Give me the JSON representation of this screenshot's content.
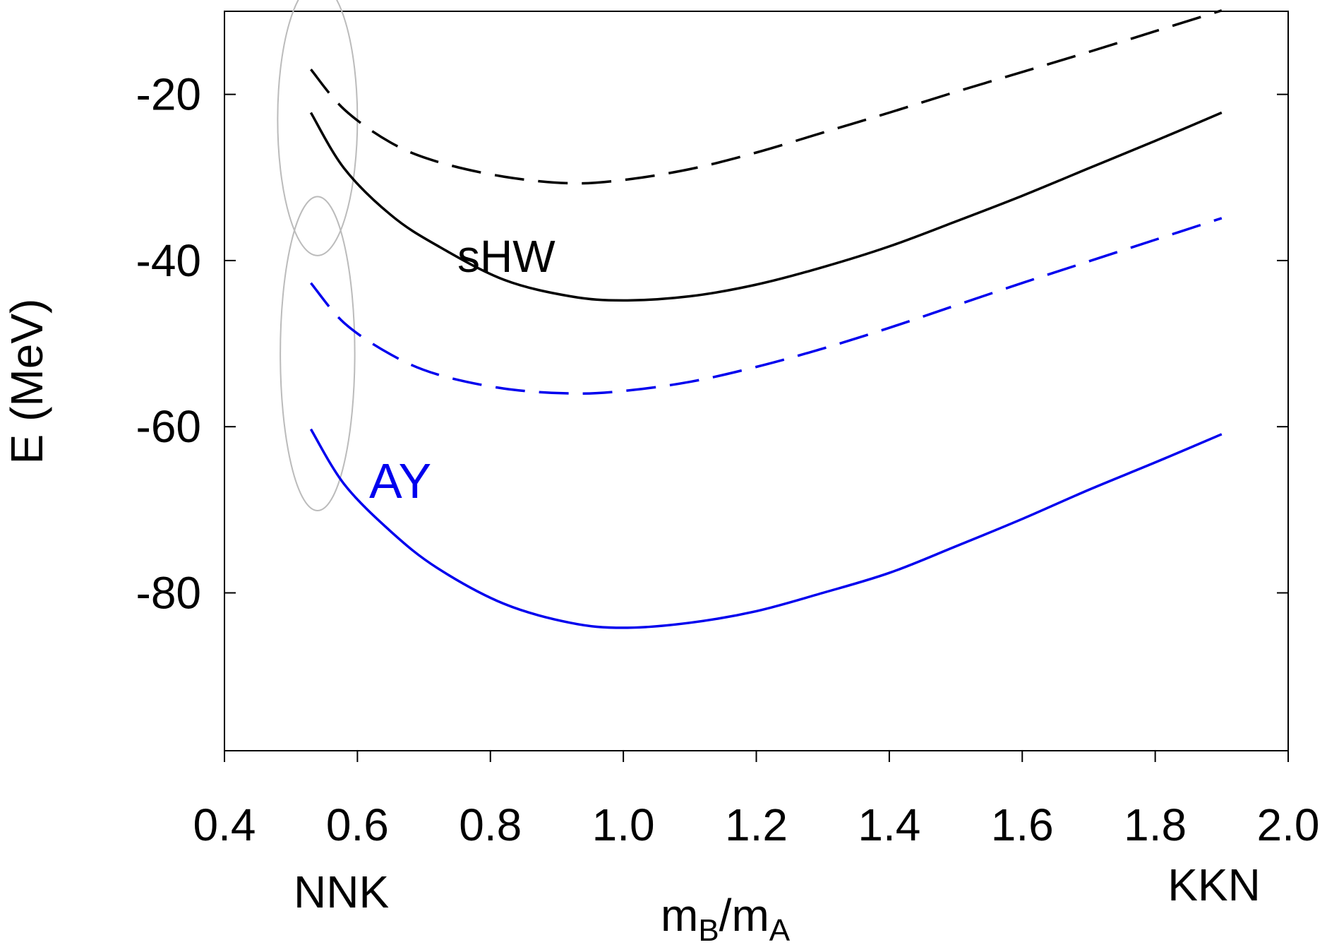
{
  "chart_data": {
    "type": "line",
    "title": "",
    "xlabel_main": "m",
    "xlabel_sub_b": "B",
    "xlabel_slash": "/m",
    "xlabel_sub_a": "A",
    "ylabel": "E (MeV)",
    "xlim": [
      0.4,
      2.0
    ],
    "ylim": [
      -99,
      -10
    ],
    "xticks": [
      0.4,
      0.6,
      0.8,
      1.0,
      1.2,
      1.4,
      1.6,
      1.8,
      2.0
    ],
    "xtick_labels": [
      "0.4",
      "0.6",
      "0.8",
      "1.0",
      "1.2",
      "1.4",
      "1.6",
      "1.8",
      "2.0"
    ],
    "yticks": [
      -20,
      -40,
      -60,
      -80
    ],
    "ytick_labels": [
      "-20",
      "-40",
      "-60",
      "-80"
    ],
    "end_labels": {
      "left": "NNK",
      "right": "KKN"
    },
    "annotations": [
      {
        "text": "sHW",
        "color": "#000000"
      },
      {
        "text": "AY",
        "color": "#0000ee"
      }
    ],
    "series": [
      {
        "name": "sHW dashed",
        "style": "dashed",
        "color": "#000000",
        "x": [
          0.53,
          0.58,
          0.65,
          0.72,
          0.82,
          0.92,
          1.0,
          1.1,
          1.2,
          1.3,
          1.4,
          1.5,
          1.6,
          1.7,
          1.8,
          1.9
        ],
        "y": [
          -17.0,
          -21.8,
          -25.8,
          -28.1,
          -29.9,
          -30.7,
          -30.3,
          -29.0,
          -27.0,
          -24.6,
          -22.2,
          -19.7,
          -17.3,
          -14.9,
          -12.4,
          -9.9
        ]
      },
      {
        "name": "sHW solid",
        "style": "solid",
        "color": "#000000",
        "x": [
          0.53,
          0.58,
          0.65,
          0.72,
          0.82,
          0.92,
          1.0,
          1.1,
          1.2,
          1.3,
          1.4,
          1.5,
          1.6,
          1.7,
          1.8,
          1.9
        ],
        "y": [
          -22.2,
          -28.9,
          -34.5,
          -38.2,
          -42.3,
          -44.3,
          -44.8,
          -44.3,
          -42.9,
          -40.8,
          -38.3,
          -35.3,
          -32.2,
          -28.9,
          -25.6,
          -22.2
        ]
      },
      {
        "name": "AY dashed",
        "style": "dashed",
        "color": "#0000ee",
        "x": [
          0.53,
          0.58,
          0.65,
          0.72,
          0.82,
          0.92,
          1.0,
          1.1,
          1.2,
          1.3,
          1.4,
          1.5,
          1.6,
          1.7,
          1.8,
          1.9
        ],
        "y": [
          -42.7,
          -47.5,
          -51.3,
          -53.7,
          -55.4,
          -56.0,
          -55.7,
          -54.6,
          -52.8,
          -50.6,
          -48.1,
          -45.4,
          -42.7,
          -40.1,
          -37.5,
          -34.9
        ]
      },
      {
        "name": "AY solid",
        "style": "solid",
        "color": "#0000ee",
        "x": [
          0.53,
          0.58,
          0.65,
          0.72,
          0.82,
          0.92,
          1.0,
          1.1,
          1.2,
          1.3,
          1.4,
          1.5,
          1.6,
          1.7,
          1.8,
          1.9
        ],
        "y": [
          -60.3,
          -66.9,
          -72.6,
          -77.0,
          -81.3,
          -83.6,
          -84.2,
          -83.6,
          -82.2,
          -80.0,
          -77.6,
          -74.4,
          -71.1,
          -67.6,
          -64.3,
          -60.9
        ]
      }
    ],
    "highlight_ellipses": [
      {
        "label": "sHW group",
        "x_center": 0.54,
        "y_center": -23.0,
        "x_halfwidth": 0.06,
        "y_halfheight": 16.4
      },
      {
        "label": "AY group",
        "x_center": 0.54,
        "y_center": -51.2,
        "x_halfwidth": 0.056,
        "y_halfheight": 18.9
      }
    ]
  },
  "colors": {
    "black": "#000000",
    "blue": "#0000ee",
    "ellipse": "#bbbbbb",
    "axis": "#000000"
  }
}
